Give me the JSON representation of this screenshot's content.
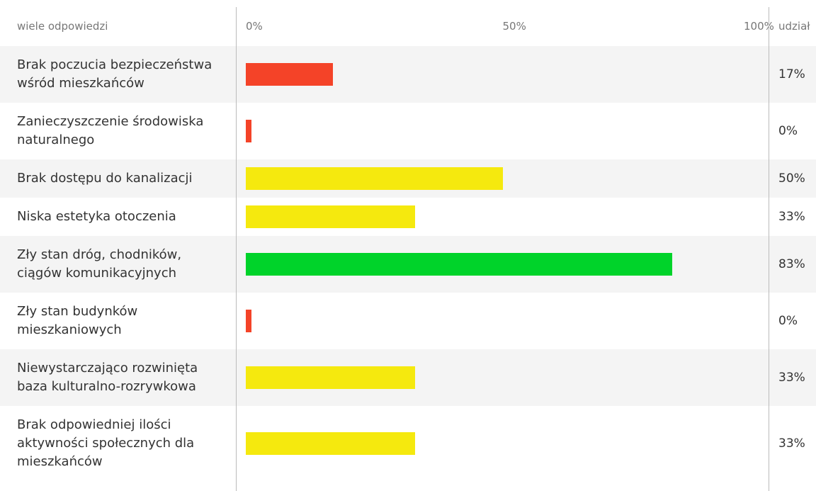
{
  "chart_data": {
    "type": "bar",
    "orientation": "horizontal",
    "header_label": "wiele odpowiedzi",
    "share_label": "udział",
    "categories": [
      "Brak poczucia bezpieczeństwa wśród mieszkańców",
      "Zanieczyszczenie środowiska naturalnego",
      "Brak dostępu do kanalizacji",
      "Niska estetyka otoczenia",
      "Zły stan dróg, chodników, ciągów komunikacyjnych",
      "Zły stan budynków mieszkaniowych",
      "Niewystarczająco rozwinięta baza kulturalno-rozrywkowa",
      "Brak odpowiedniej ilości aktywności społecznych dla mieszkańców"
    ],
    "values": [
      17,
      0,
      50,
      33,
      83,
      0,
      33,
      33
    ],
    "value_labels": [
      "17%",
      "0%",
      "50%",
      "33%",
      "83%",
      "0%",
      "33%",
      "33%"
    ],
    "colors": [
      "#f44328",
      "#f44328",
      "#f5e90e",
      "#f5e90e",
      "#00d32a",
      "#f44328",
      "#f5e90e",
      "#f5e90e"
    ],
    "xlim": [
      0,
      100
    ],
    "xticks": [
      {
        "value": 0,
        "label": "0%"
      },
      {
        "value": 50,
        "label": "50%"
      },
      {
        "value": 100,
        "label": "100%"
      }
    ]
  }
}
